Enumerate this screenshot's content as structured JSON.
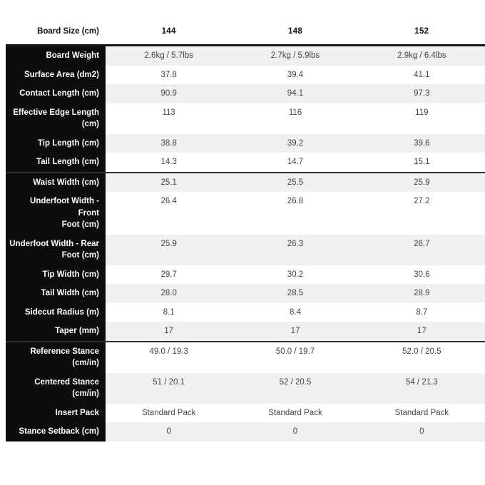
{
  "chart_data": {
    "type": "table",
    "title": "Board Size (cm)",
    "columns": [
      "144",
      "148",
      "152"
    ],
    "rows": [
      {
        "label": "Board Weight",
        "values": [
          "2.6kg / 5.7lbs",
          "2.7kg / 5.9lbs",
          "2.9kg / 6.4lbs"
        ]
      },
      {
        "label": "Surface Area (dm2)",
        "values": [
          "37.8",
          "39.4",
          "41.1"
        ]
      },
      {
        "label": "Contact Length (cm)",
        "values": [
          "90.9",
          "94.1",
          "97.3"
        ]
      },
      {
        "label": "Effective Edge Length\n(cm)",
        "values": [
          "113",
          "116",
          "119"
        ]
      },
      {
        "label": "Tip Length (cm)",
        "values": [
          "38.8",
          "39.2",
          "39.6"
        ]
      },
      {
        "label": "Tail Length (cm)",
        "values": [
          "14.3",
          "14.7",
          "15.1"
        ]
      },
      {
        "label": "Waist Width (cm)",
        "divider_before": true,
        "values": [
          "25.1",
          "25.5",
          "25.9"
        ]
      },
      {
        "label": "Underfoot Width - Front\nFoot (cm)",
        "values": [
          "26.4",
          "26.8",
          "27.2"
        ]
      },
      {
        "label": "Underfoot Width - Rear\nFoot (cm)",
        "values": [
          "25.9",
          "26.3",
          "26.7"
        ]
      },
      {
        "label": "Tip Width (cm)",
        "values": [
          "29.7",
          "30.2",
          "30.6"
        ]
      },
      {
        "label": "Tail Width (cm)",
        "values": [
          "28.0",
          "28.5",
          "28.9"
        ]
      },
      {
        "label": "Sidecut Radius (m)",
        "values": [
          "8.1",
          "8.4",
          "8.7"
        ]
      },
      {
        "label": "Taper (mm)",
        "values": [
          "17",
          "17",
          "17"
        ]
      },
      {
        "label": "Reference Stance\n(cm/in)",
        "divider_before": true,
        "values": [
          "49.0 / 19.3",
          "50.0 / 19.7",
          "52.0 / 20.5"
        ]
      },
      {
        "label": "Centered Stance\n(cm/in)",
        "values": [
          "51 / 20.1",
          "52 / 20.5",
          "54 / 21.3"
        ]
      },
      {
        "label": "Insert Pack",
        "values": [
          "Standard Pack",
          "Standard Pack",
          "Standard Pack"
        ]
      },
      {
        "label": "Stance Setback (cm)",
        "values": [
          "0",
          "0",
          "0"
        ]
      }
    ],
    "layout": {
      "legend": "none",
      "grid": "row-banding",
      "first_data_row_shaded": true
    },
    "colors": {
      "label_column_bg": "#0d0d0d",
      "label_text": "#ffffff",
      "shaded_row_bg": "#f0f0f0",
      "plain_row_bg": "#ffffff",
      "value_text": "#454545",
      "header_text": "#111111",
      "section_divider": "#2f2f2f"
    }
  }
}
